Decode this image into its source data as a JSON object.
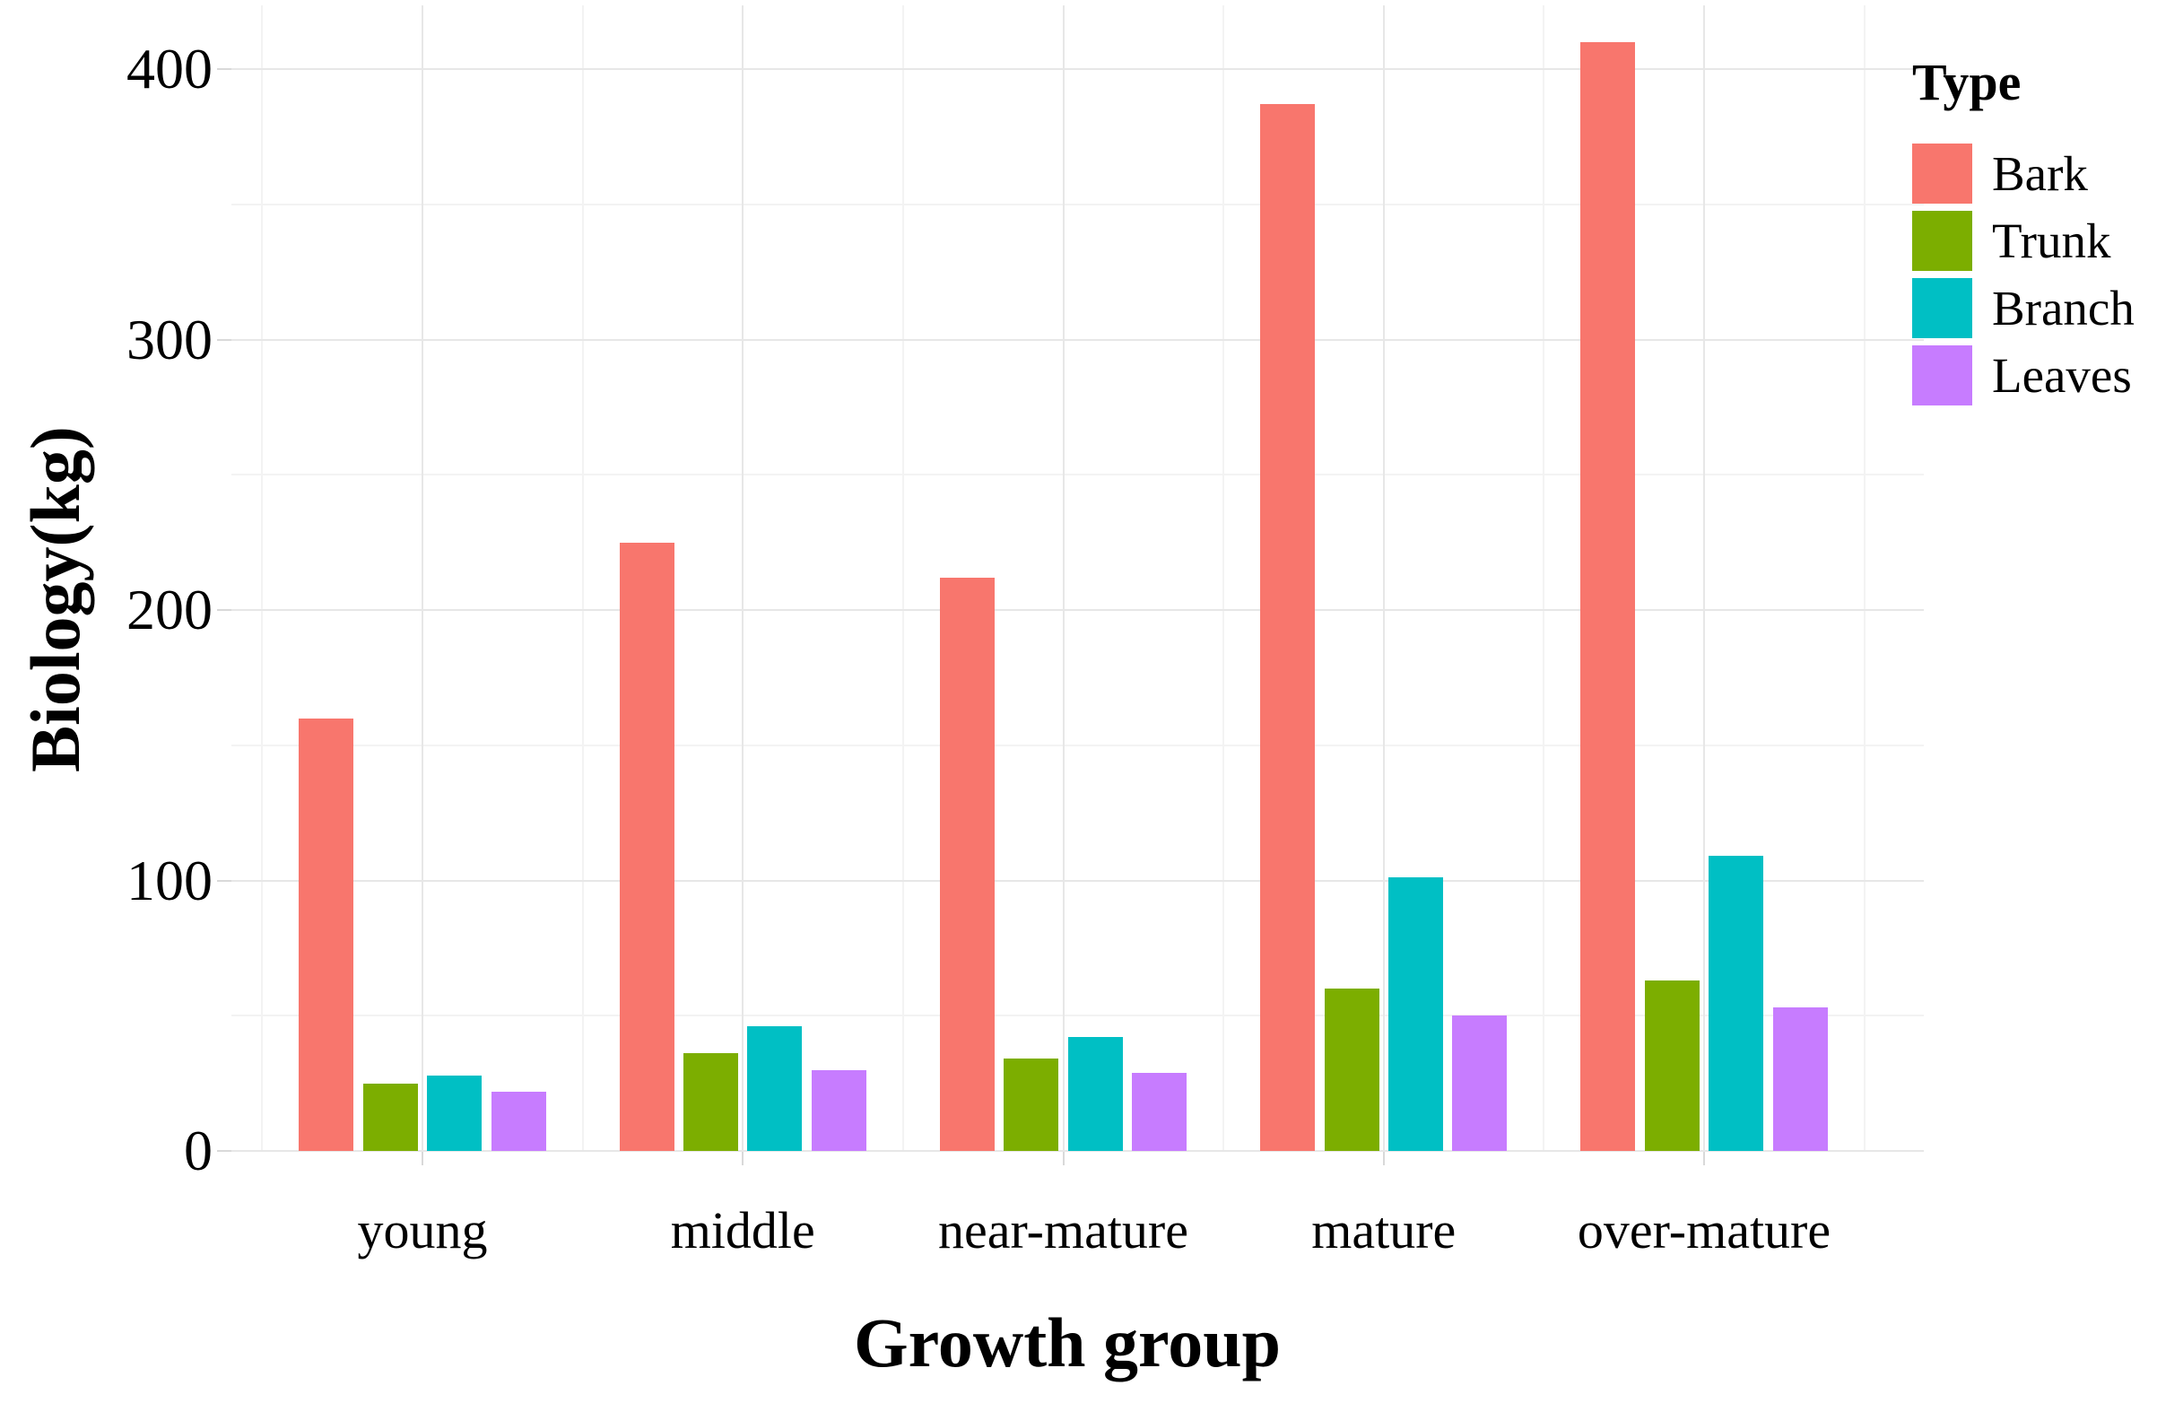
{
  "figure": {
    "y_axis_title": "Biology(kg)",
    "x_axis_title": "Growth group",
    "legend_title": "Type"
  },
  "chart_data": {
    "type": "bar",
    "title": "",
    "xlabel": "Growth group",
    "ylabel": "Biology(kg)",
    "categories": [
      "young",
      "middle",
      "near-mature",
      "mature",
      "over-mature"
    ],
    "series": [
      {
        "name": "Bark",
        "color": "#F8766D",
        "values": [
          160,
          225,
          212,
          387,
          410
        ]
      },
      {
        "name": "Trunk",
        "color": "#7CAE00",
        "values": [
          25,
          36,
          34,
          60,
          63
        ]
      },
      {
        "name": "Branch",
        "color": "#00BFC4",
        "values": [
          28,
          46,
          42,
          101,
          109
        ]
      },
      {
        "name": "Leaves",
        "color": "#C77CFF",
        "values": [
          22,
          30,
          29,
          50,
          53
        ]
      }
    ],
    "ylim": [
      0,
      420
    ],
    "yticks": [
      0,
      100,
      200,
      300,
      400
    ],
    "minor_ytick_step": 50,
    "grid": true,
    "legend_position": "right",
    "legend_title": "Type"
  }
}
